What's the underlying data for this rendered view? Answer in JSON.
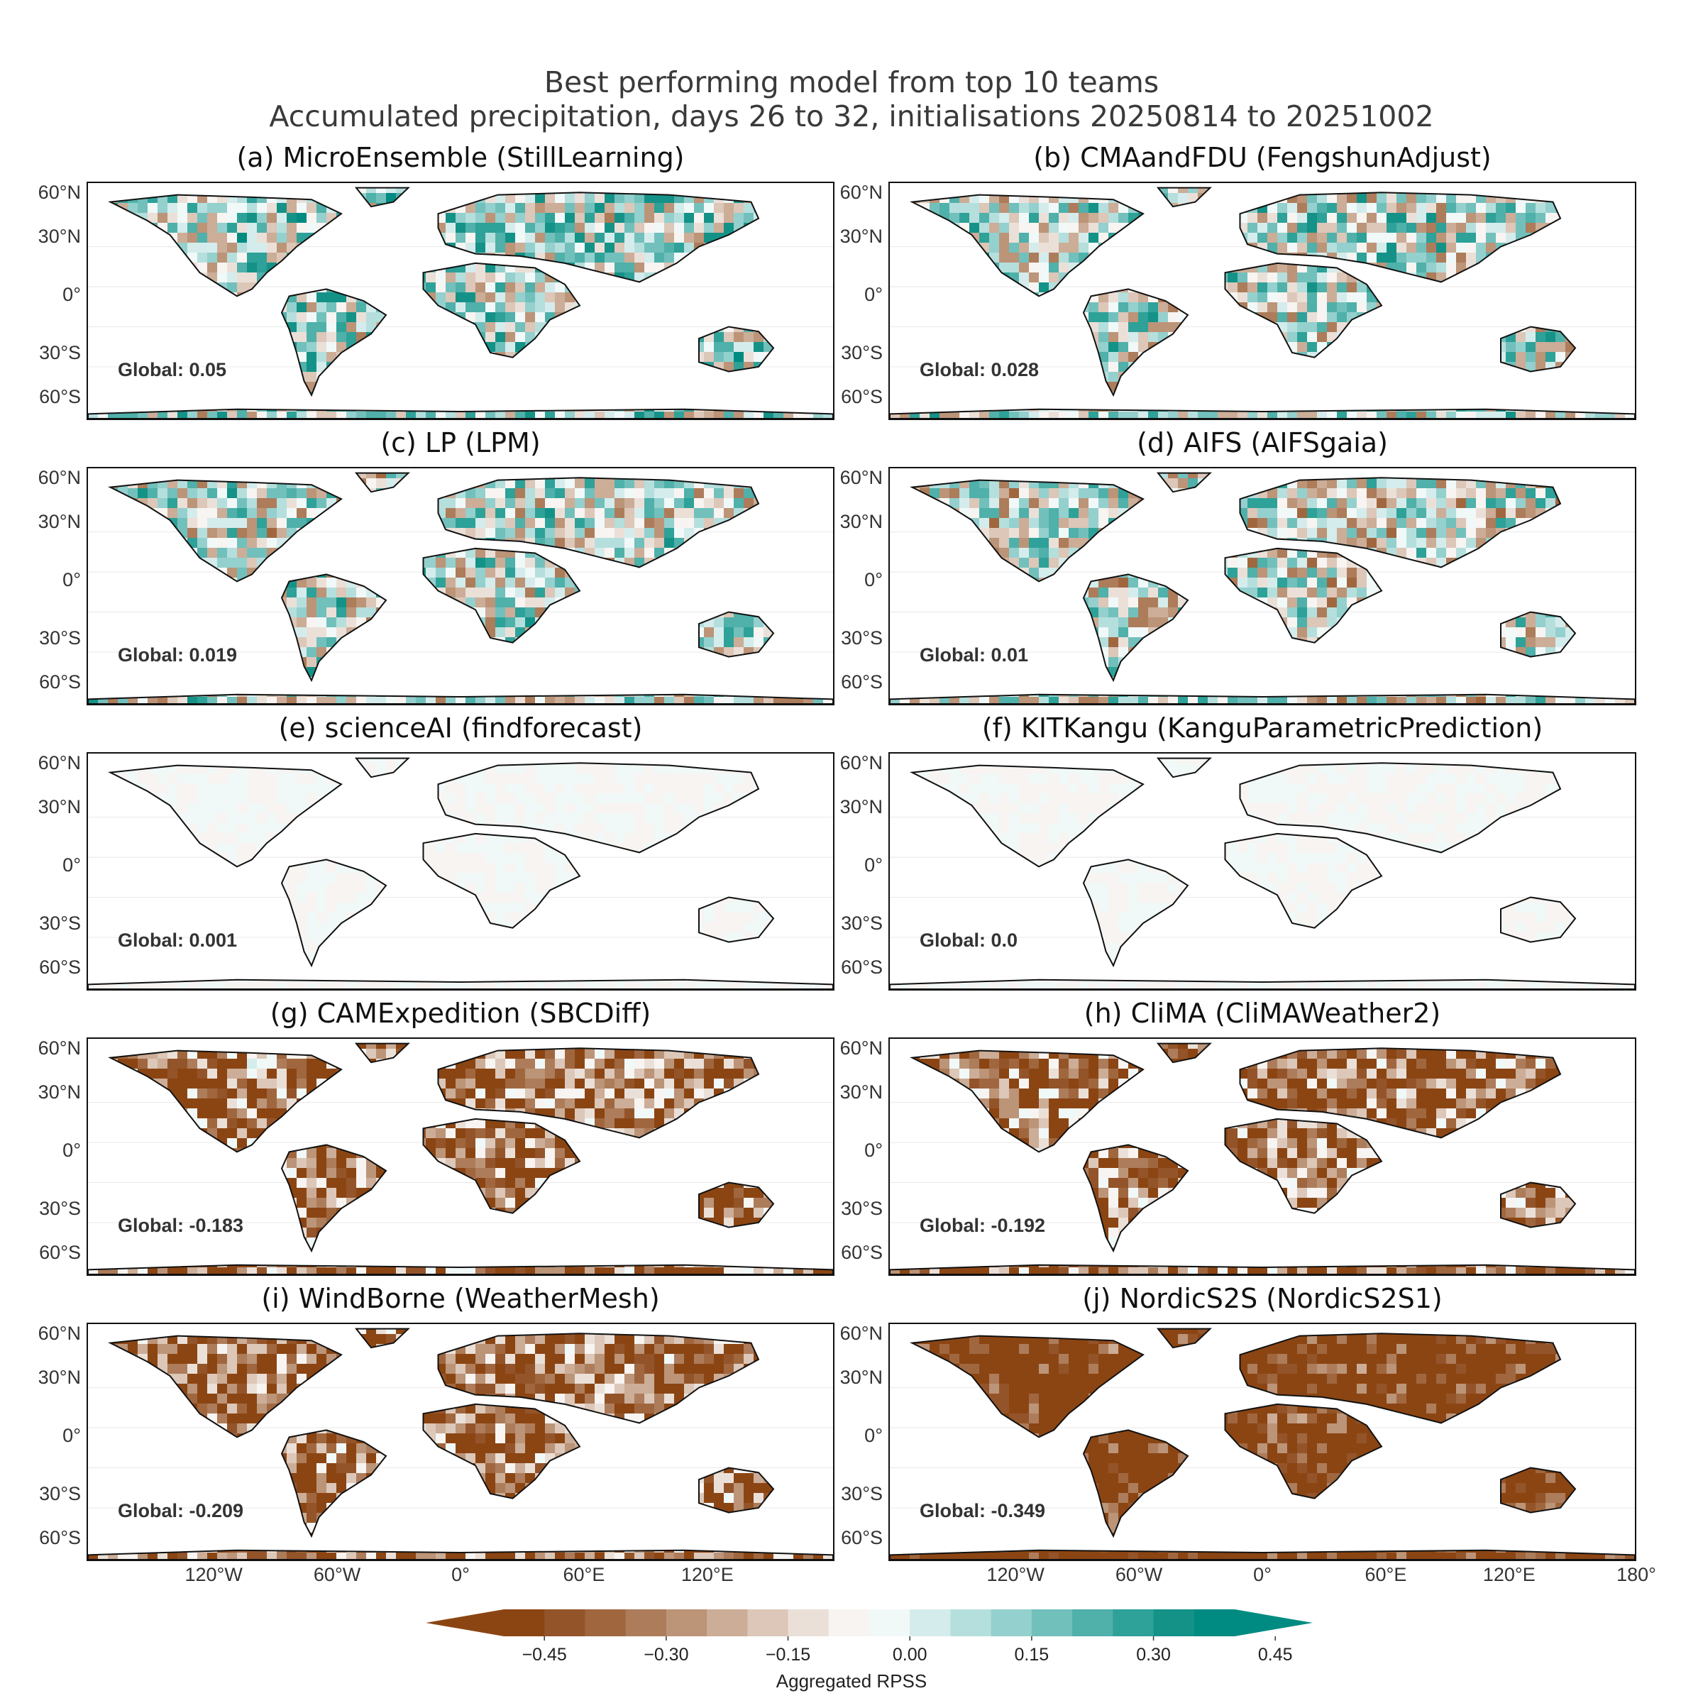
{
  "figure": {
    "title_line1": "Best performing model from top 10 teams",
    "title_line2": "Accumulated precipitation, days 26 to 32, initialisations 20250814 to 20251002"
  },
  "lat_labels": [
    "60°N",
    "30°N",
    "0°",
    "30°S",
    "60°S"
  ],
  "lon_labels": [
    "120°W",
    "60°W",
    "0°",
    "60°E",
    "120°E",
    "180°"
  ],
  "panels": [
    {
      "title": "(a) MicroEnsemble (StillLearning)",
      "global": "Global: 0.05",
      "score": 0.05
    },
    {
      "title": "(b) CMAandFDU (FengshunAdjust)",
      "global": "Global: 0.028",
      "score": 0.028
    },
    {
      "title": "(c) LP (LPM)",
      "global": "Global: 0.019",
      "score": 0.019
    },
    {
      "title": "(d) AIFS (AIFSgaia)",
      "global": "Global: 0.01",
      "score": 0.01
    },
    {
      "title": "(e) scienceAI (findforecast)",
      "global": "Global: 0.001",
      "score": 0.001
    },
    {
      "title": "(f) KITKangu (KanguParametricPrediction)",
      "global": "Global: 0.0",
      "score": 0.0
    },
    {
      "title": "(g) CAMExpedition (SBCDiff)",
      "global": "Global: -0.183",
      "score": -0.183
    },
    {
      "title": "(h) CliMA (CliMAWeather2)",
      "global": "Global: -0.192",
      "score": -0.192
    },
    {
      "title": "(i) WindBorne (WeatherMesh)",
      "global": "Global: -0.209",
      "score": -0.209
    },
    {
      "title": "(j) NordicS2S (NordicS2S1)",
      "global": "Global: -0.349",
      "score": -0.349
    }
  ],
  "colorbar": {
    "label": "Aggregated RPSS",
    "ticks": [
      "−0.45",
      "−0.30",
      "−0.15",
      "0.00",
      "0.15",
      "0.30",
      "0.45"
    ],
    "colors": [
      "#8b4513",
      "#94542a",
      "#a0673f",
      "#ad7c5a",
      "#bc9478",
      "#ccad97",
      "#dcc7b8",
      "#ebe0d8",
      "#f7f4f1",
      "#f1f8f8",
      "#d5ecec",
      "#b5dfdd",
      "#94d0cd",
      "#72c0bc",
      "#50b0aa",
      "#2ea198",
      "#149287",
      "#008b82"
    ],
    "neg_color": "#8b4513",
    "pos_color": "#008b82"
  }
}
